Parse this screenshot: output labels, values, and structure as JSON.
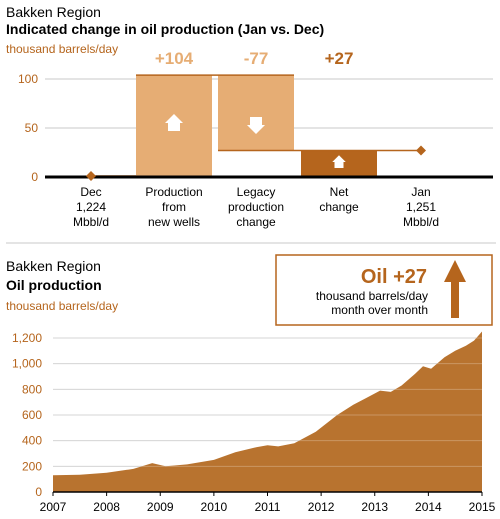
{
  "colors": {
    "accent_dark": "#b5651d",
    "accent_light": "#e6ad74",
    "fill_area": "#b8732f",
    "grid": "#c9c9c9",
    "baseline": "#000000"
  },
  "top": {
    "region": "Bakken Region",
    "title": "Indicated change in oil production (Jan vs. Dec)",
    "unit": "thousand barrels/day"
  },
  "bottom": {
    "region": "Bakken Region",
    "title": "Oil production",
    "unit": "thousand barrels/day"
  },
  "callout": {
    "headline": "Oil +27",
    "line1": "thousand barrels/day",
    "line2": "month over month",
    "arrow_icon": "arrow-up-icon"
  },
  "chart_data": [
    {
      "type": "bar",
      "subtype": "waterfall",
      "title": "Indicated change in oil production (Jan vs. Dec)",
      "ylabel": "thousand barrels/day",
      "ylim": [
        0,
        100
      ],
      "yticks": [
        0,
        50,
        100
      ],
      "grid": true,
      "categories": [
        {
          "lines": [
            "Dec",
            "1,224",
            "Mbbl/d"
          ],
          "value": null
        },
        {
          "lines": [
            "Production",
            "from",
            "new wells"
          ],
          "value": 104,
          "label": "+104",
          "direction": "up"
        },
        {
          "lines": [
            "Legacy",
            "production",
            "change"
          ],
          "value": -77,
          "label": "-77",
          "direction": "down"
        },
        {
          "lines": [
            "Net",
            "change"
          ],
          "value": 27,
          "label": "+27",
          "direction": "up"
        },
        {
          "lines": [
            "Jan",
            "1,251",
            "Mbbl/d"
          ],
          "value": null
        }
      ],
      "start_value": 1224,
      "end_value": 1251,
      "units": "Mbbl/d"
    },
    {
      "type": "area",
      "title": "Oil production",
      "ylabel": "thousand barrels/day",
      "ylim": [
        0,
        1250
      ],
      "yticks": [
        0,
        200,
        400,
        600,
        800,
        1000,
        1200
      ],
      "ytick_labels": [
        "0",
        "200",
        "400",
        "600",
        "800",
        "1,000",
        "1,200"
      ],
      "xlim": [
        2007,
        2015
      ],
      "xticks": [
        2007,
        2008,
        2009,
        2010,
        2011,
        2012,
        2013,
        2014,
        2015
      ],
      "grid": true,
      "series": [
        {
          "x": [
            2007.0,
            2007.5,
            2008.0,
            2008.5,
            2008.85,
            2009.1,
            2009.5,
            2010.0,
            2010.4,
            2010.8,
            2011.0,
            2011.2,
            2011.5,
            2011.9,
            2012.3,
            2012.6,
            2012.85,
            2013.1,
            2013.3,
            2013.5,
            2013.75,
            2013.9,
            2014.05,
            2014.3,
            2014.5,
            2014.7,
            2014.85,
            2015.0
          ],
          "y": [
            130,
            135,
            150,
            180,
            225,
            200,
            215,
            250,
            310,
            350,
            365,
            355,
            380,
            470,
            600,
            680,
            735,
            790,
            780,
            830,
            920,
            980,
            960,
            1050,
            1100,
            1140,
            1180,
            1251
          ]
        }
      ]
    }
  ]
}
